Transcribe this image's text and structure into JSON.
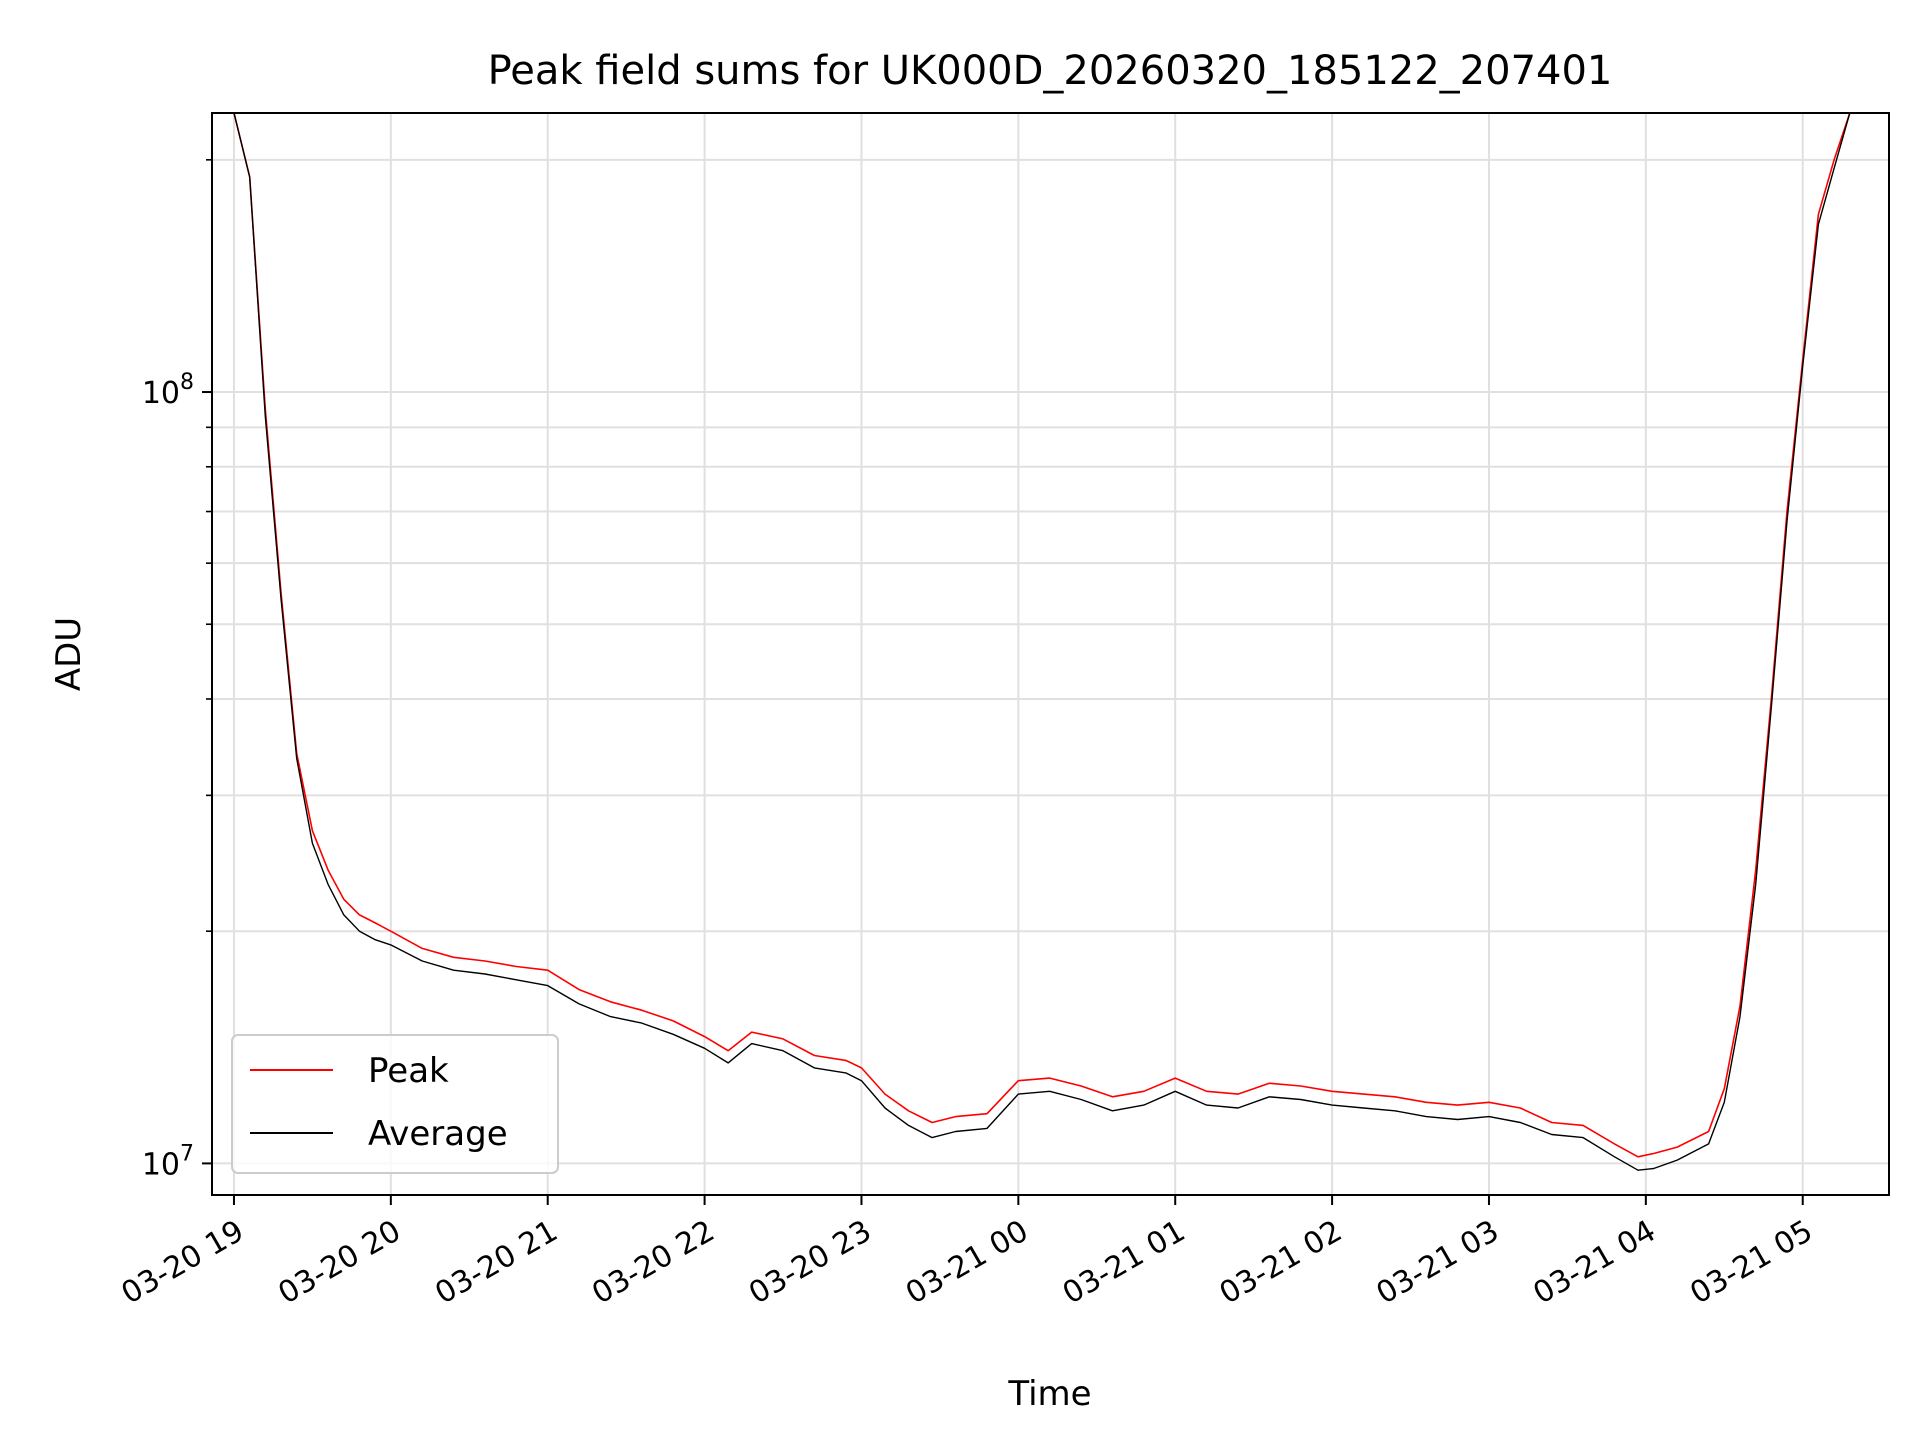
{
  "chart_data": {
    "type": "line",
    "title": "Peak field sums for UK000D_20260320_185122_207401",
    "xlabel": "Time",
    "ylabel": "ADU",
    "yscale": "log",
    "grid": true,
    "legend_position": "lower-left",
    "x_unit": "hours since 2026-03-20 19:00",
    "xlim": [
      -0.14,
      10.55
    ],
    "ylim": [
      9100000,
      230000000
    ],
    "x_ticks": [
      {
        "value": 0,
        "label": "03-20 19"
      },
      {
        "value": 1,
        "label": "03-20 20"
      },
      {
        "value": 2,
        "label": "03-20 21"
      },
      {
        "value": 3,
        "label": "03-20 22"
      },
      {
        "value": 4,
        "label": "03-20 23"
      },
      {
        "value": 5,
        "label": "03-21 00"
      },
      {
        "value": 6,
        "label": "03-21 01"
      },
      {
        "value": 7,
        "label": "03-21 02"
      },
      {
        "value": 8,
        "label": "03-21 03"
      },
      {
        "value": 9,
        "label": "03-21 04"
      },
      {
        "value": 10,
        "label": "03-21 05"
      }
    ],
    "y_ticks": [
      {
        "value": 10000000,
        "base": "10",
        "exp": "7"
      },
      {
        "value": 100000000,
        "base": "10",
        "exp": "8"
      }
    ],
    "y_minor_ticks": [
      20000000,
      30000000,
      40000000,
      50000000,
      60000000,
      70000000,
      80000000,
      90000000,
      200000000
    ],
    "series": [
      {
        "name": "Peak",
        "color": "#ff0000",
        "x": [
          -0.1,
          0.0,
          0.1,
          0.2,
          0.3,
          0.4,
          0.5,
          0.6,
          0.7,
          0.8,
          0.9,
          1.0,
          1.2,
          1.4,
          1.6,
          1.8,
          2.0,
          2.2,
          2.4,
          2.6,
          2.8,
          3.0,
          3.15,
          3.3,
          3.5,
          3.7,
          3.9,
          4.0,
          4.15,
          4.3,
          4.45,
          4.6,
          4.8,
          5.0,
          5.2,
          5.4,
          5.6,
          5.8,
          6.0,
          6.2,
          6.4,
          6.6,
          6.8,
          7.0,
          7.2,
          7.4,
          7.6,
          7.8,
          8.0,
          8.2,
          8.4,
          8.6,
          8.8,
          8.95,
          9.05,
          9.2,
          9.4,
          9.5,
          9.6,
          9.7,
          9.8,
          9.9,
          10.0,
          10.1,
          10.2,
          10.3,
          10.35
        ],
        "y": [
          230000000,
          230000000,
          190000000,
          95000000,
          55000000,
          34000000,
          27000000,
          24000000,
          22000000,
          21000000,
          20500000,
          20000000,
          19000000,
          18500000,
          18300000,
          18000000,
          17800000,
          16800000,
          16200000,
          15800000,
          15300000,
          14600000,
          14000000,
          14800000,
          14500000,
          13800000,
          13600000,
          13300000,
          12300000,
          11700000,
          11300000,
          11500000,
          11600000,
          12800000,
          12900000,
          12600000,
          12200000,
          12400000,
          12900000,
          12400000,
          12300000,
          12700000,
          12600000,
          12400000,
          12300000,
          12200000,
          12000000,
          11900000,
          12000000,
          11800000,
          11300000,
          11200000,
          10600000,
          10200000,
          10300000,
          10500000,
          11000000,
          12500000,
          16000000,
          24000000,
          40000000,
          70000000,
          110000000,
          170000000,
          200000000,
          230000000,
          230000000
        ]
      },
      {
        "name": "Average",
        "color": "#000000",
        "x": [
          -0.1,
          0.0,
          0.1,
          0.2,
          0.3,
          0.4,
          0.5,
          0.6,
          0.7,
          0.8,
          0.9,
          1.0,
          1.2,
          1.4,
          1.6,
          1.8,
          2.0,
          2.2,
          2.4,
          2.6,
          2.8,
          3.0,
          3.15,
          3.3,
          3.5,
          3.7,
          3.9,
          4.0,
          4.15,
          4.3,
          4.45,
          4.6,
          4.8,
          5.0,
          5.2,
          5.4,
          5.6,
          5.8,
          6.0,
          6.2,
          6.4,
          6.6,
          6.8,
          7.0,
          7.2,
          7.4,
          7.6,
          7.8,
          8.0,
          8.2,
          8.4,
          8.6,
          8.8,
          8.95,
          9.05,
          9.2,
          9.4,
          9.5,
          9.6,
          9.7,
          9.8,
          9.9,
          10.0,
          10.1,
          10.2,
          10.3,
          10.35
        ],
        "y": [
          230000000,
          230000000,
          190000000,
          93000000,
          54000000,
          33500000,
          26000000,
          23000000,
          21000000,
          20000000,
          19500000,
          19200000,
          18300000,
          17800000,
          17600000,
          17300000,
          17000000,
          16100000,
          15500000,
          15200000,
          14700000,
          14100000,
          13500000,
          14300000,
          14000000,
          13300000,
          13100000,
          12800000,
          11800000,
          11200000,
          10800000,
          11000000,
          11100000,
          12300000,
          12400000,
          12100000,
          11700000,
          11900000,
          12400000,
          11900000,
          11800000,
          12200000,
          12100000,
          11900000,
          11800000,
          11700000,
          11500000,
          11400000,
          11500000,
          11300000,
          10900000,
          10800000,
          10200000,
          9800000,
          9850000,
          10100000,
          10600000,
          12000000,
          15500000,
          23000000,
          39000000,
          68000000,
          108000000,
          165000000,
          195000000,
          230000000,
          230000000
        ]
      }
    ]
  }
}
